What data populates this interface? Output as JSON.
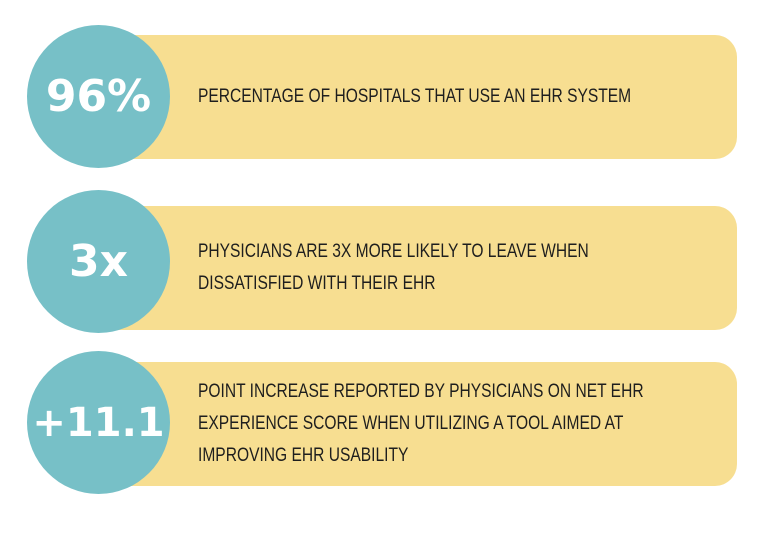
{
  "stats": [
    {
      "value": "96%",
      "lines": [
        "PERCENTAGE OF HOSPITALS THAT USE AN EHR SYSTEM"
      ]
    },
    {
      "value": "3x",
      "lines": [
        "PHYSICIANS ARE 3X MORE LIKELY TO LEAVE WHEN",
        "DISSATISFIED WITH THEIR EHR"
      ]
    },
    {
      "value": "+11.1",
      "lines": [
        "POINT INCREASE REPORTED BY PHYSICIANS ON NET EHR",
        "EXPERIENCE SCORE WHEN UTILIZING A TOOL AIMED AT",
        "IMPROVING EHR USABILITY"
      ]
    }
  ],
  "colors": {
    "circle": "#77c0c7",
    "pill": "#f7de91",
    "text": "#1e1e1e"
  }
}
